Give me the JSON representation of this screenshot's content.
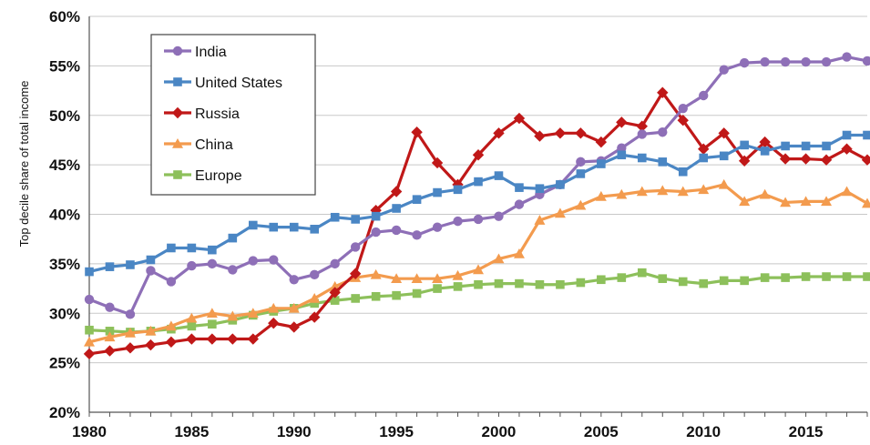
{
  "chart_data": {
    "type": "line",
    "title": "",
    "xlabel": "",
    "ylabel": "Top decile share of total income",
    "xlim": [
      1980,
      2018
    ],
    "ylim": [
      20,
      60
    ],
    "x_ticks": [
      1980,
      1985,
      1990,
      1995,
      2000,
      2005,
      2010,
      2015
    ],
    "x_tick_labels": [
      "1980",
      "1985",
      "1990",
      "1995",
      "2000",
      "2005",
      "2010",
      "2015"
    ],
    "y_ticks": [
      20,
      25,
      30,
      35,
      40,
      45,
      50,
      55,
      60
    ],
    "y_tick_labels": [
      "20%",
      "25%",
      "30%",
      "35%",
      "40%",
      "45%",
      "50%",
      "55%",
      "60%"
    ],
    "grid": "horizontal",
    "legend_position": "top-left",
    "x": [
      1980,
      1981,
      1982,
      1983,
      1984,
      1985,
      1986,
      1987,
      1988,
      1989,
      1990,
      1991,
      1992,
      1993,
      1994,
      1995,
      1996,
      1997,
      1998,
      1999,
      2000,
      2001,
      2002,
      2003,
      2004,
      2005,
      2006,
      2007,
      2008,
      2009,
      2010,
      2011,
      2012,
      2013,
      2014,
      2015,
      2016,
      2017,
      2018
    ],
    "series": [
      {
        "name": "India",
        "color": "#8e6fb7",
        "marker": "circle",
        "values": [
          31.4,
          30.6,
          29.9,
          34.3,
          33.2,
          34.8,
          35.0,
          34.4,
          35.3,
          35.4,
          33.4,
          33.9,
          35.0,
          36.7,
          38.2,
          38.4,
          37.9,
          38.7,
          39.3,
          39.5,
          39.8,
          41.0,
          42.0,
          43.0,
          45.3,
          45.4,
          46.7,
          48.1,
          48.3,
          50.7,
          52.0,
          54.6,
          55.3,
          55.4,
          55.4,
          55.4,
          55.4,
          55.9,
          55.5
        ]
      },
      {
        "name": "United States",
        "color": "#4a86c4",
        "marker": "square",
        "values": [
          34.2,
          34.7,
          34.9,
          35.4,
          36.6,
          36.6,
          36.4,
          37.6,
          38.9,
          38.7,
          38.7,
          38.5,
          39.7,
          39.5,
          39.8,
          40.6,
          41.5,
          42.2,
          42.5,
          43.3,
          43.9,
          42.7,
          42.6,
          43.0,
          44.1,
          45.1,
          46.0,
          45.7,
          45.3,
          44.3,
          45.7,
          45.9,
          47.0,
          46.4,
          46.9,
          46.9,
          46.9,
          48.0,
          48.0
        ]
      },
      {
        "name": "Russia",
        "color": "#c01818",
        "marker": "diamond",
        "values": [
          25.9,
          26.2,
          26.5,
          26.8,
          27.1,
          27.4,
          27.4,
          27.4,
          27.4,
          29.0,
          28.6,
          29.6,
          32.1,
          34.0,
          40.4,
          42.3,
          48.3,
          45.2,
          43.0,
          46.0,
          48.2,
          49.7,
          47.9,
          48.2,
          48.2,
          47.3,
          49.3,
          48.9,
          52.3,
          49.5,
          46.6,
          48.2,
          45.4,
          47.3,
          45.6,
          45.6,
          45.5,
          46.6,
          45.5
        ]
      },
      {
        "name": "China",
        "color": "#f39b4e",
        "marker": "triangle",
        "values": [
          27.1,
          27.6,
          28.0,
          28.2,
          28.7,
          29.5,
          30.0,
          29.7,
          30.0,
          30.5,
          30.5,
          31.5,
          32.7,
          33.6,
          33.9,
          33.5,
          33.5,
          33.5,
          33.8,
          34.4,
          35.5,
          36.0,
          39.4,
          40.1,
          40.9,
          41.8,
          42.0,
          42.3,
          42.4,
          42.3,
          42.5,
          43.0,
          41.3,
          42.0,
          41.2,
          41.3,
          41.3,
          42.3,
          41.1
        ]
      },
      {
        "name": "Europe",
        "color": "#8dc05b",
        "marker": "square",
        "values": [
          28.3,
          28.2,
          28.1,
          28.2,
          28.4,
          28.7,
          28.9,
          29.3,
          29.8,
          30.2,
          30.5,
          31.0,
          31.3,
          31.5,
          31.7,
          31.8,
          32.0,
          32.5,
          32.7,
          32.9,
          33.0,
          33.0,
          32.9,
          32.9,
          33.1,
          33.4,
          33.6,
          34.1,
          33.5,
          33.2,
          33.0,
          33.3,
          33.3,
          33.6,
          33.6,
          33.7,
          33.7,
          33.7,
          33.7
        ]
      }
    ]
  }
}
